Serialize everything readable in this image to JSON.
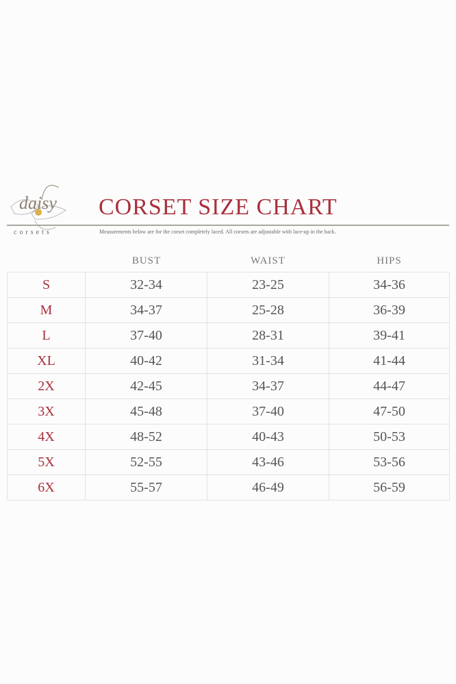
{
  "logo": {
    "word": "daisy",
    "sub": "corsets"
  },
  "title": "CORSET SIZE CHART",
  "note": "Measurements below are for the corset completely laced.  All corsets are adjustable with lace-up in the back.",
  "headers": [
    "BUST",
    "WAIST",
    "HIPS"
  ],
  "rows": [
    {
      "size": "S",
      "bust": "32-34",
      "waist": "23-25",
      "hips": "34-36"
    },
    {
      "size": "M",
      "bust": "34-37",
      "waist": "25-28",
      "hips": "36-39"
    },
    {
      "size": "L",
      "bust": "37-40",
      "waist": "28-31",
      "hips": "39-41"
    },
    {
      "size": "XL",
      "bust": "40-42",
      "waist": "31-34",
      "hips": "41-44"
    },
    {
      "size": "2X",
      "bust": "42-45",
      "waist": "34-37",
      "hips": "44-47"
    },
    {
      "size": "3X",
      "bust": "45-48",
      "waist": "37-40",
      "hips": "47-50"
    },
    {
      "size": "4X",
      "bust": "48-52",
      "waist": "40-43",
      "hips": "50-53"
    },
    {
      "size": "5X",
      "bust": "52-55",
      "waist": "43-46",
      "hips": "53-56"
    },
    {
      "size": "6X",
      "bust": "55-57",
      "waist": "46-49",
      "hips": "56-59"
    }
  ],
  "colors": {
    "accent": "#a8303c",
    "text": "#555555"
  }
}
